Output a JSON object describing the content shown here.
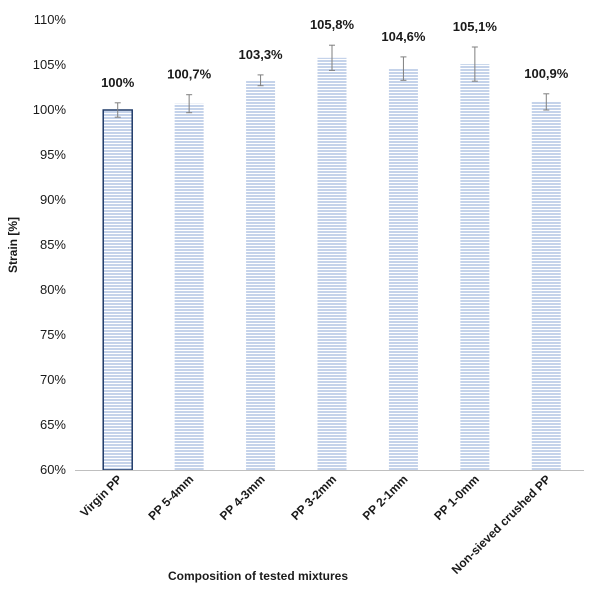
{
  "chart_data": {
    "type": "bar",
    "title": "",
    "xlabel": "Composition of tested mixtures",
    "ylabel": "Strain [%]",
    "ylim": [
      60,
      110
    ],
    "yticks": [
      "60%",
      "65%",
      "70%",
      "75%",
      "80%",
      "85%",
      "90%",
      "95%",
      "100%",
      "105%",
      "110%"
    ],
    "categories": [
      "Virgin PP",
      "PP 5-4mm",
      "PP 4-3mm",
      "PP 3-2mm",
      "PP 2-1mm",
      "PP 1-0mm",
      "Non-sieved crushed PP"
    ],
    "values": [
      100.0,
      100.7,
      103.3,
      105.8,
      104.6,
      105.1,
      100.9
    ],
    "error": [
      0.8,
      1.0,
      0.6,
      1.4,
      1.3,
      1.9,
      0.9
    ],
    "data_labels": [
      "100%",
      "100,7%",
      "103,3%",
      "105,8%",
      "104,6%",
      "105,1%",
      "100,9%"
    ],
    "grid": false,
    "legend": "none",
    "colors": {
      "bar_fill": "#c5d3ea",
      "bar_stripe": "#ffffff",
      "highlight_border": "#1f3a68",
      "error_bar": "#7f7f7f",
      "axis": "#bfbfbf"
    }
  }
}
